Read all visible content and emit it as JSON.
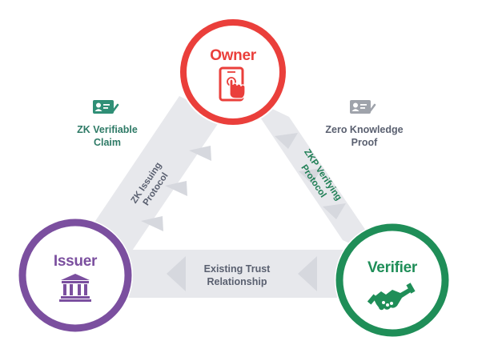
{
  "colors": {
    "owner": "#ea3f3b",
    "issuer": "#7b4f9f",
    "verifier": "#1f8e58",
    "band": "#e7e8ec",
    "band_arrow": "#d6d8de",
    "band_text_gray": "#5a6070",
    "zk_text": "#2e7a66",
    "zkp_text": "#1f7f55",
    "card_teal": "#2f8f76",
    "card_gray": "#9fa3ab"
  },
  "nodes": {
    "owner": {
      "label": "Owner",
      "icon": "hand-tapping-phone-icon"
    },
    "issuer": {
      "label": "Issuer",
      "icon": "bank-building-icon"
    },
    "verifier": {
      "label": "Verifier",
      "icon": "handshake-icon"
    }
  },
  "edges": {
    "issuing": {
      "line1": "ZK Issuing",
      "line2": "Protocol"
    },
    "verifying": {
      "line1": "ZKP Verifying",
      "line2": "Protocol"
    },
    "trust": {
      "line1": "Existing Trust",
      "line2": "Relationship"
    }
  },
  "claims": {
    "zk_claim": {
      "line1": "ZK Verifiable",
      "line2": "Claim",
      "icon": "id-card-check-icon"
    },
    "zk_proof": {
      "line1": "Zero Knowledge",
      "line2": "Proof",
      "icon": "id-card-check-icon"
    }
  }
}
